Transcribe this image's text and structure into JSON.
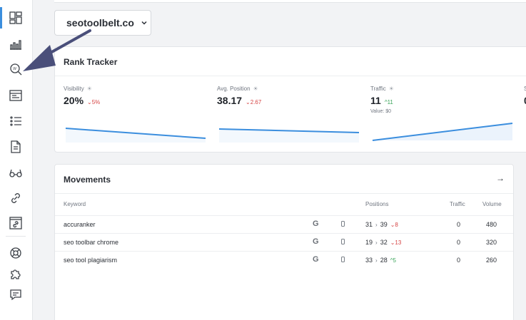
{
  "sidebar": {
    "items": [
      {
        "name": "dashboard-icon"
      },
      {
        "name": "bar-chart-icon"
      },
      {
        "name": "rank-search-icon"
      },
      {
        "name": "site-audit-icon"
      },
      {
        "name": "list-icon"
      },
      {
        "name": "document-icon"
      },
      {
        "name": "glasses-icon"
      },
      {
        "name": "link-icon"
      },
      {
        "name": "link-frame-icon"
      },
      {
        "name": "help-lifebuoy-icon"
      },
      {
        "name": "puzzle-icon"
      },
      {
        "name": "chat-icon"
      }
    ],
    "accent": "#3b8ede"
  },
  "domain_selector": {
    "value": "seotoolbelt.co"
  },
  "rank_tracker": {
    "title": "Rank Tracker",
    "metrics": [
      {
        "label": "Visibility",
        "value": "20%",
        "change": "5%",
        "direction": "down",
        "sub": ""
      },
      {
        "label": "Avg. Position",
        "value": "38.17",
        "change": "2.67",
        "direction": "down",
        "sub": ""
      },
      {
        "label": "Traffic",
        "value": "11",
        "change": "11",
        "direction": "up",
        "sub": "Value: $0"
      },
      {
        "label": "S",
        "value": "0",
        "change": "",
        "direction": "",
        "sub": ""
      }
    ]
  },
  "movements": {
    "title": "Movements",
    "arrow": "→",
    "columns": {
      "keyword": "Keyword",
      "positions": "Positions",
      "traffic": "Traffic",
      "volume": "Volume"
    },
    "rows": [
      {
        "keyword": "accuranker",
        "engine": "G",
        "from": "31",
        "to": "39",
        "change": "8",
        "direction": "down",
        "traffic": "0",
        "volume": "480"
      },
      {
        "keyword": "seo toolbar chrome",
        "engine": "G",
        "from": "19",
        "to": "32",
        "change": "13",
        "direction": "down",
        "traffic": "0",
        "volume": "320"
      },
      {
        "keyword": "seo tool plagiarism",
        "engine": "G",
        "from": "33",
        "to": "28",
        "change": "5",
        "direction": "up",
        "traffic": "0",
        "volume": "260"
      }
    ]
  },
  "colors": {
    "spark_line": "#3b8ede",
    "down": "#d64545",
    "up": "#3ca55c",
    "annotation": "#4a4f7a"
  }
}
